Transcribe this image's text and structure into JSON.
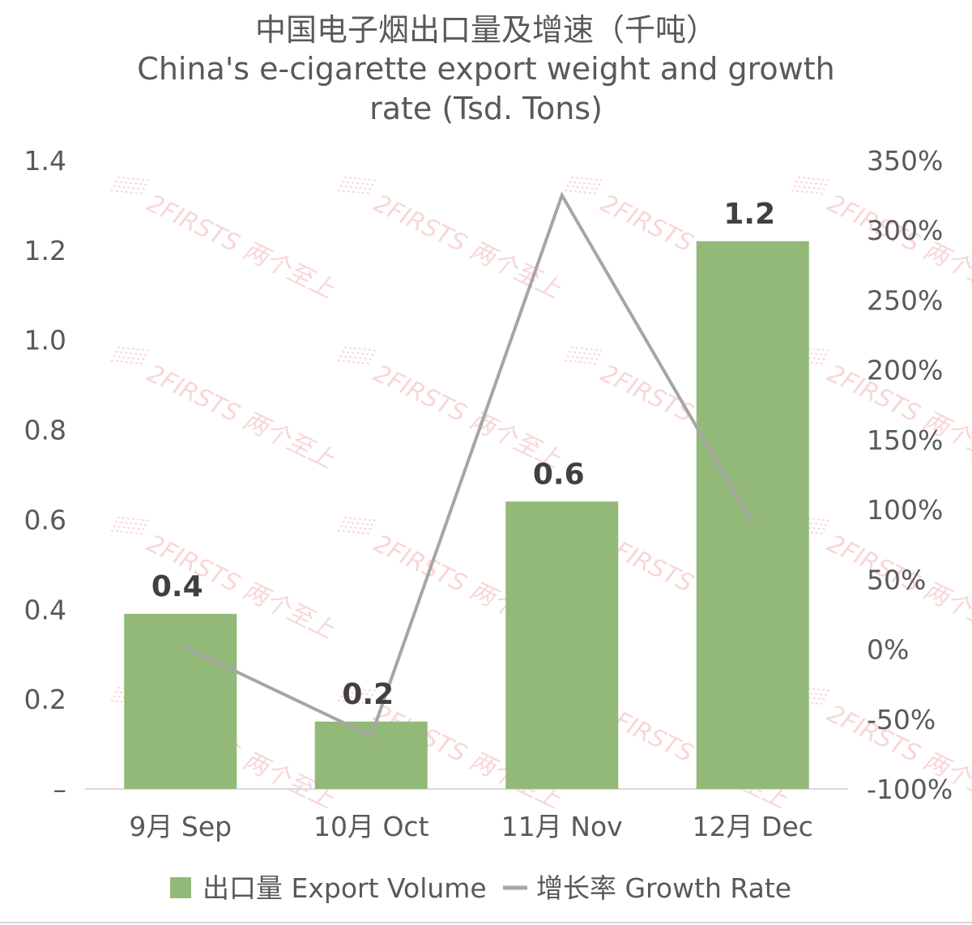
{
  "chart_data": {
    "type": "bar",
    "title": "中国电子烟出口量及增速（千吨）",
    "subtitle_lines": [
      "China's e-cigarette export weight and growth",
      "rate (Tsd. Tons)"
    ],
    "categories": [
      "9月 Sep",
      "10月 Oct",
      "11月 Nov",
      "12月 Dec"
    ],
    "series": [
      {
        "name": "出口量 Export Volume",
        "type": "bar",
        "axis": "left",
        "color": "#93b978",
        "values": [
          0.39,
          0.15,
          0.64,
          1.22
        ],
        "data_labels": [
          "0.4",
          "0.2",
          "0.6",
          "1.2"
        ]
      },
      {
        "name": "增长率 Growth Rate",
        "type": "line",
        "axis": "right",
        "color": "#a6a6a6",
        "values": [
          3,
          -62,
          325,
          90
        ]
      }
    ],
    "y_left": {
      "ylim": [
        0,
        1.4
      ],
      "ticks": [
        "–",
        "0.2",
        "0.4",
        "0.6",
        "0.8",
        "1.0",
        "1.2",
        "1.4"
      ]
    },
    "y_right": {
      "ylim": [
        -100,
        350
      ],
      "ticks": [
        "-100%",
        "-50%",
        "0%",
        "50%",
        "100%",
        "150%",
        "200%",
        "250%",
        "300%",
        "350%"
      ]
    },
    "grid": false,
    "legend_position": "bottom",
    "watermark": "2FIRSTS 两个至上"
  }
}
